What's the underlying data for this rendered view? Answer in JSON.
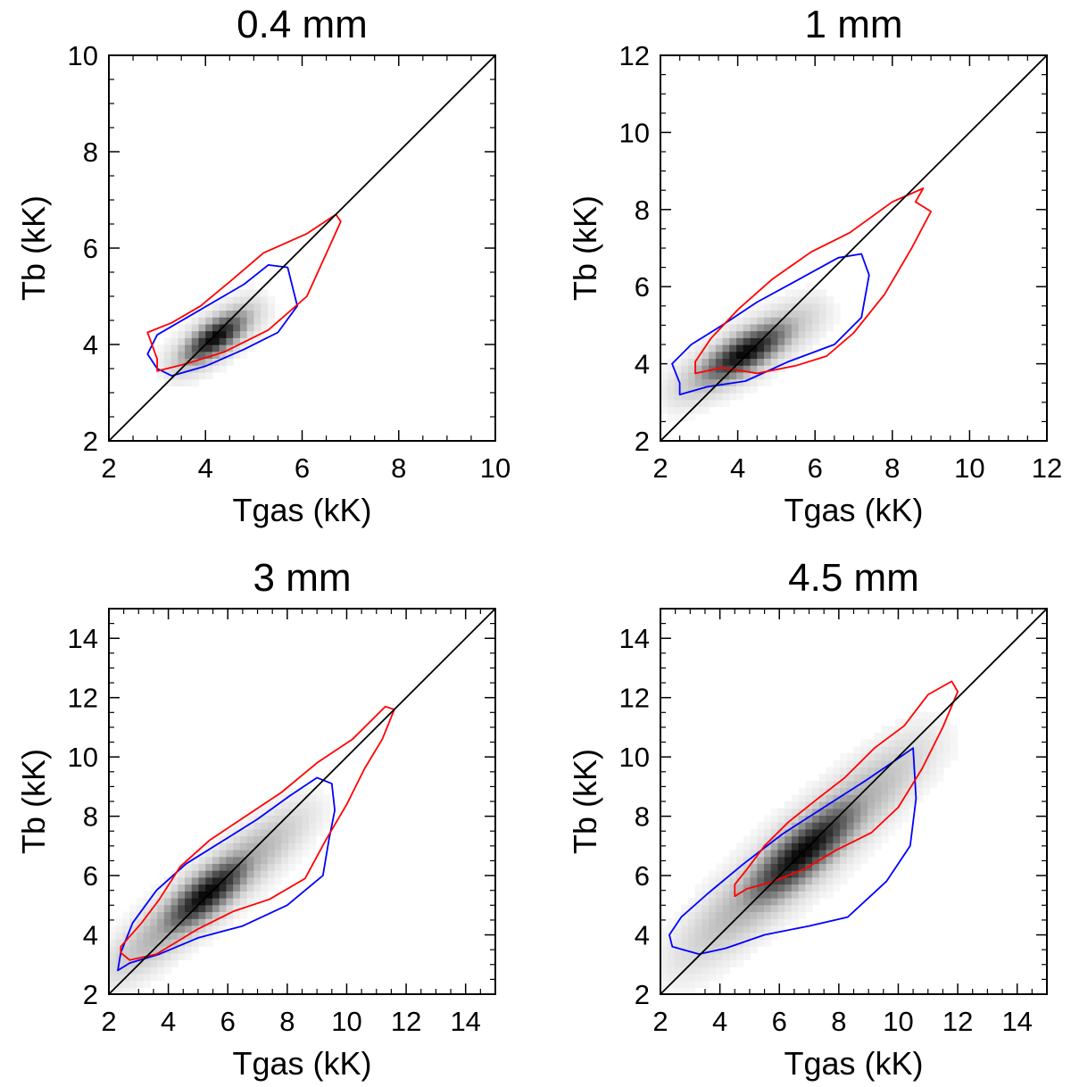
{
  "chart_data": [
    {
      "type": "heatmap",
      "title": "0.4 mm",
      "xlabel": "Tgas (kK)",
      "ylabel": "Tb (kK)",
      "xlim": [
        2,
        10
      ],
      "ylim": [
        2,
        10
      ],
      "xticks": [
        "2",
        "4",
        "6",
        "8",
        "10"
      ],
      "yticks": [
        "2",
        "4",
        "6",
        "8",
        "10"
      ],
      "density": {
        "center": [
          4.2,
          4.15
        ],
        "sigma_major": 0.55,
        "sigma_minor": 0.22,
        "angle_deg": 36,
        "extent_major": 1.5
      },
      "series": [
        {
          "color": "#0000ff",
          "points": [
            [
              3.0,
              3.5
            ],
            [
              3.3,
              3.35
            ],
            [
              4.0,
              3.55
            ],
            [
              4.8,
              3.9
            ],
            [
              5.5,
              4.25
            ],
            [
              5.9,
              4.8
            ],
            [
              5.7,
              5.6
            ],
            [
              5.3,
              5.65
            ],
            [
              4.8,
              5.25
            ],
            [
              4.2,
              4.9
            ],
            [
              3.6,
              4.55
            ],
            [
              3.0,
              4.2
            ],
            [
              2.8,
              3.8
            ]
          ]
        },
        {
          "color": "#ff0000",
          "points": [
            [
              3.0,
              3.45
            ],
            [
              3.6,
              3.6
            ],
            [
              4.4,
              3.85
            ],
            [
              5.3,
              4.3
            ],
            [
              6.1,
              5.0
            ],
            [
              6.8,
              6.55
            ],
            [
              6.7,
              6.7
            ],
            [
              6.1,
              6.3
            ],
            [
              5.2,
              5.9
            ],
            [
              4.5,
              5.3
            ],
            [
              3.9,
              4.8
            ],
            [
              3.3,
              4.45
            ],
            [
              2.8,
              4.25
            ],
            [
              3.0,
              3.7
            ]
          ]
        },
        {
          "color": "#000000",
          "points": [
            [
              2,
              2
            ],
            [
              10,
              10
            ]
          ]
        }
      ]
    },
    {
      "type": "heatmap",
      "title": "1 mm",
      "xlabel": "Tgas (kK)",
      "ylabel": "Tb (kK)",
      "xlim": [
        2,
        12
      ],
      "ylim": [
        2,
        12
      ],
      "xticks": [
        "2",
        "4",
        "6",
        "8",
        "10",
        "12"
      ],
      "yticks": [
        "2",
        "4",
        "6",
        "8",
        "10",
        "12"
      ],
      "density": {
        "center": [
          4.2,
          4.3
        ],
        "sigma_major": 0.95,
        "sigma_minor": 0.32,
        "angle_deg": 31,
        "extent_major": 2.8
      },
      "series": [
        {
          "color": "#0000ff",
          "points": [
            [
              2.5,
              3.2
            ],
            [
              3.2,
              3.4
            ],
            [
              4.2,
              3.55
            ],
            [
              5.3,
              4.05
            ],
            [
              6.5,
              4.5
            ],
            [
              7.2,
              5.2
            ],
            [
              7.4,
              6.3
            ],
            [
              7.2,
              6.85
            ],
            [
              6.6,
              6.75
            ],
            [
              5.6,
              6.2
            ],
            [
              4.5,
              5.6
            ],
            [
              3.6,
              5.0
            ],
            [
              2.8,
              4.5
            ],
            [
              2.3,
              4.0
            ],
            [
              2.5,
              3.5
            ]
          ]
        },
        {
          "color": "#ff0000",
          "points": [
            [
              2.9,
              3.75
            ],
            [
              3.6,
              3.9
            ],
            [
              4.5,
              3.75
            ],
            [
              5.5,
              3.95
            ],
            [
              6.3,
              4.2
            ],
            [
              7.0,
              4.8
            ],
            [
              7.8,
              5.8
            ],
            [
              8.5,
              7.0
            ],
            [
              9.0,
              7.95
            ],
            [
              8.6,
              8.2
            ],
            [
              8.8,
              8.55
            ],
            [
              8.0,
              8.2
            ],
            [
              6.9,
              7.4
            ],
            [
              5.9,
              6.9
            ],
            [
              4.9,
              6.2
            ],
            [
              4.0,
              5.4
            ],
            [
              3.3,
              4.65
            ],
            [
              2.9,
              4.05
            ]
          ]
        },
        {
          "color": "#000000",
          "points": [
            [
              2,
              2
            ],
            [
              12,
              12
            ]
          ]
        }
      ]
    },
    {
      "type": "heatmap",
      "title": "3 mm",
      "xlabel": "Tgas (kK)",
      "ylabel": "Tb (kK)",
      "xlim": [
        2,
        15
      ],
      "ylim": [
        2,
        15
      ],
      "xticks": [
        "2",
        "4",
        "6",
        "8",
        "10",
        "12",
        "14"
      ],
      "yticks": [
        "2",
        "4",
        "6",
        "8",
        "10",
        "12",
        "14"
      ],
      "density": {
        "center": [
          5.3,
          5.4
        ],
        "sigma_major": 1.4,
        "sigma_minor": 0.45,
        "angle_deg": 40,
        "extent_major": 5.5
      },
      "series": [
        {
          "color": "#0000ff",
          "points": [
            [
              2.3,
              2.8
            ],
            [
              2.7,
              3.05
            ],
            [
              3.7,
              3.35
            ],
            [
              5.0,
              3.9
            ],
            [
              6.5,
              4.3
            ],
            [
              8.0,
              5.0
            ],
            [
              9.2,
              6.0
            ],
            [
              9.4,
              7.2
            ],
            [
              9.6,
              8.2
            ],
            [
              9.5,
              9.1
            ],
            [
              9.0,
              9.3
            ],
            [
              8.1,
              8.7
            ],
            [
              7.0,
              7.9
            ],
            [
              5.8,
              7.15
            ],
            [
              4.6,
              6.4
            ],
            [
              3.6,
              5.5
            ],
            [
              2.8,
              4.4
            ],
            [
              2.4,
              3.4
            ],
            [
              2.3,
              2.8
            ]
          ]
        },
        {
          "color": "#ff0000",
          "points": [
            [
              2.4,
              3.4
            ],
            [
              2.7,
              3.15
            ],
            [
              3.6,
              3.35
            ],
            [
              5.0,
              4.2
            ],
            [
              6.2,
              4.8
            ],
            [
              7.4,
              5.2
            ],
            [
              8.6,
              5.9
            ],
            [
              9.3,
              7.2
            ],
            [
              10.0,
              8.4
            ],
            [
              10.6,
              9.6
            ],
            [
              11.2,
              10.6
            ],
            [
              11.6,
              11.6
            ],
            [
              11.3,
              11.7
            ],
            [
              10.2,
              10.6
            ],
            [
              9.0,
              9.8
            ],
            [
              7.8,
              8.8
            ],
            [
              6.6,
              8.0
            ],
            [
              5.4,
              7.2
            ],
            [
              4.4,
              6.3
            ],
            [
              3.7,
              5.2
            ],
            [
              3.1,
              4.4
            ],
            [
              2.4,
              3.6
            ]
          ]
        },
        {
          "color": "#000000",
          "points": [
            [
              2,
              2
            ],
            [
              15,
              15
            ]
          ]
        }
      ]
    },
    {
      "type": "heatmap",
      "title": "4.5 mm",
      "xlabel": "Tgas (kK)",
      "ylabel": "Tb (kK)",
      "xlim": [
        2,
        15
      ],
      "ylim": [
        2,
        15
      ],
      "xticks": [
        "2",
        "4",
        "6",
        "8",
        "10",
        "12",
        "14"
      ],
      "yticks": [
        "2",
        "4",
        "6",
        "8",
        "10",
        "12",
        "14"
      ],
      "density": {
        "center": [
          6.8,
          6.8
        ],
        "sigma_major": 1.9,
        "sigma_minor": 0.55,
        "angle_deg": 42,
        "extent_major": 7.0
      },
      "series": [
        {
          "color": "#0000ff",
          "points": [
            [
              2.4,
              3.6
            ],
            [
              3.3,
              3.35
            ],
            [
              4.2,
              3.55
            ],
            [
              5.5,
              4.0
            ],
            [
              7.0,
              4.3
            ],
            [
              8.3,
              4.6
            ],
            [
              9.6,
              5.8
            ],
            [
              10.4,
              7.0
            ],
            [
              10.6,
              8.6
            ],
            [
              10.5,
              10.3
            ],
            [
              10.0,
              9.95
            ],
            [
              8.9,
              9.2
            ],
            [
              7.5,
              8.3
            ],
            [
              6.1,
              7.4
            ],
            [
              4.8,
              6.4
            ],
            [
              3.6,
              5.4
            ],
            [
              2.7,
              4.6
            ],
            [
              2.3,
              4.0
            ]
          ]
        },
        {
          "color": "#ff0000",
          "points": [
            [
              4.5,
              5.3
            ],
            [
              4.9,
              5.55
            ],
            [
              5.8,
              5.8
            ],
            [
              6.9,
              6.25
            ],
            [
              7.9,
              6.85
            ],
            [
              9.1,
              7.45
            ],
            [
              10.0,
              8.3
            ],
            [
              10.8,
              9.6
            ],
            [
              11.5,
              11.0
            ],
            [
              12.0,
              12.2
            ],
            [
              11.8,
              12.55
            ],
            [
              11.0,
              12.1
            ],
            [
              10.2,
              11.05
            ],
            [
              9.2,
              10.3
            ],
            [
              8.2,
              9.3
            ],
            [
              7.3,
              8.6
            ],
            [
              6.3,
              7.8
            ],
            [
              5.5,
              7.0
            ],
            [
              4.9,
              6.2
            ],
            [
              4.5,
              5.7
            ]
          ]
        },
        {
          "color": "#000000",
          "points": [
            [
              2,
              2
            ],
            [
              15,
              15
            ]
          ]
        }
      ]
    }
  ]
}
